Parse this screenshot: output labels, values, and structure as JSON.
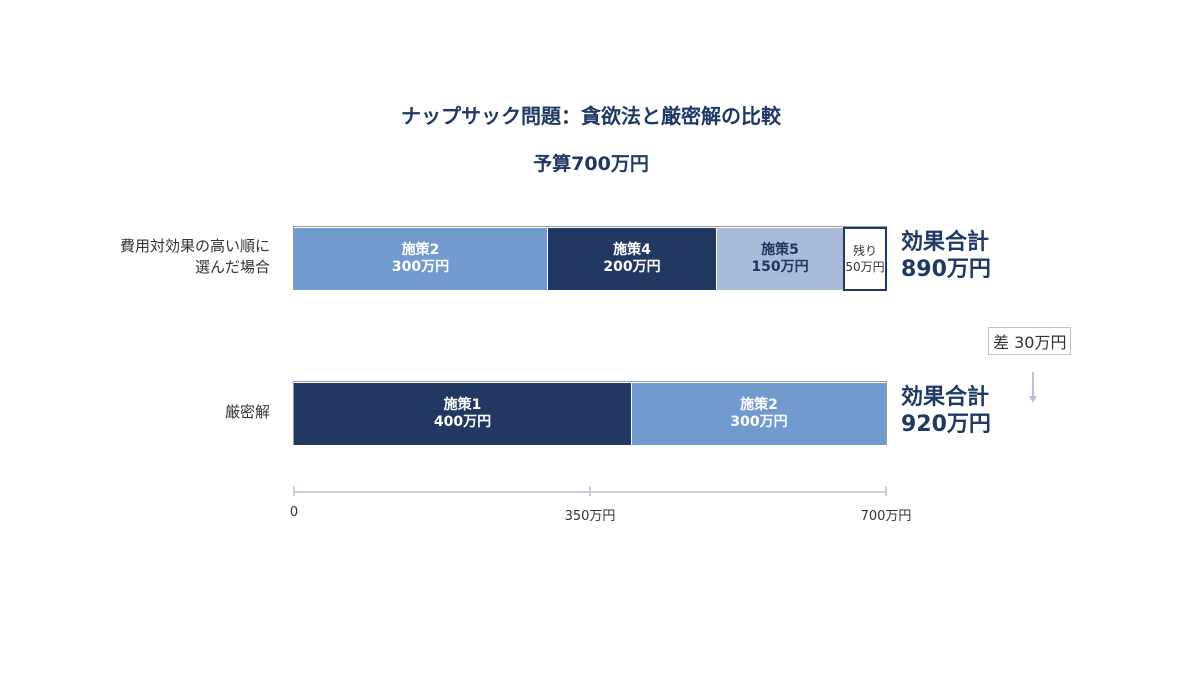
{
  "title": "ナップサック問題：貪欲法と厳密解の比較",
  "subtitle": "予算700万円",
  "chart_data": {
    "type": "bar",
    "orientation": "horizontal-stacked",
    "title": "ナップサック問題：貪欲法と厳密解の比較",
    "subtitle": "予算700万円",
    "unit": "万円",
    "xlim": [
      0,
      700
    ],
    "x_ticks": [
      0,
      350,
      700
    ],
    "x_tick_labels": [
      "0",
      "350万円",
      "700万円"
    ],
    "rows": [
      {
        "label_line1": "費用対効果の高い順に",
        "label_line2": "選んだ場合",
        "segments": [
          {
            "name": "施策2",
            "value": 300,
            "value_label": "300万円",
            "color": "#719ace",
            "style": "mid"
          },
          {
            "name": "施策4",
            "value": 200,
            "value_label": "200万円",
            "color": "#213863",
            "style": "dark"
          },
          {
            "name": "施策5",
            "value": 150,
            "value_label": "150万円",
            "color": "#a8bcda",
            "style": "light"
          },
          {
            "name": "残り",
            "value": 50,
            "value_label": "50万円",
            "color": "#ffffff",
            "style": "remain"
          }
        ],
        "total_label": "効果合計",
        "total_value": "890万円"
      },
      {
        "label_line1": "厳密解",
        "label_line2": "",
        "segments": [
          {
            "name": "施策1",
            "value": 400,
            "value_label": "400万円",
            "color": "#213863",
            "style": "dark"
          },
          {
            "name": "施策2",
            "value": 300,
            "value_label": "300万円",
            "color": "#719ace",
            "style": "mid"
          }
        ],
        "total_label": "効果合計",
        "total_value": "920万円"
      }
    ],
    "difference_label": "差 30万円"
  },
  "colors": {
    "navy": "#1f3864",
    "dark": "#213863",
    "mid": "#719ace",
    "light": "#a8bcda",
    "axis": "#b9c1d4"
  }
}
